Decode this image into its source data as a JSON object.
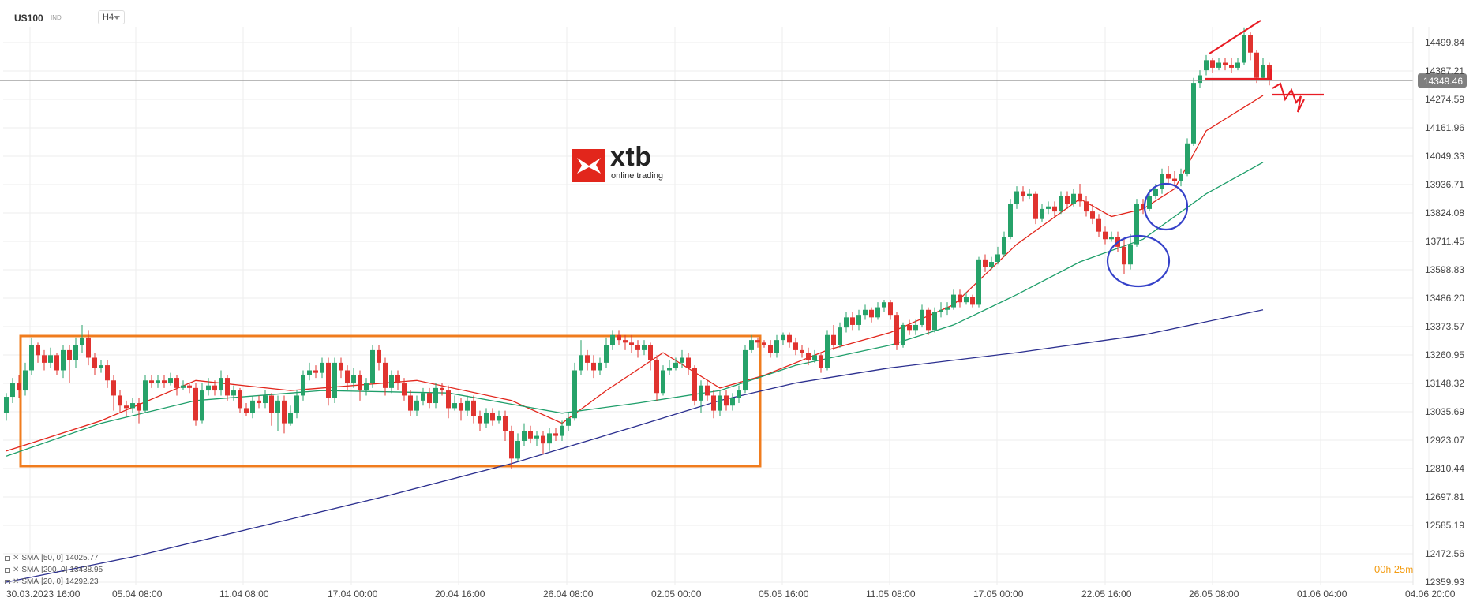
{
  "header": {
    "symbol": "US100",
    "class": "IND",
    "timeframe": "H4"
  },
  "logo": {
    "name": "xtb",
    "tagline": "online trading"
  },
  "timer": {
    "hours": "00",
    "h_unit": "h",
    "minutes": "25",
    "m_unit": "m"
  },
  "legend": [
    {
      "label": "SMA",
      "params": "[50, 0]",
      "value": "14025.77",
      "color": "#1e9e6a"
    },
    {
      "label": "SMA",
      "params": "[200, 0]",
      "value": "13438.95",
      "color": "#2b2f8f"
    },
    {
      "label": "SMA",
      "params": "[20, 0]",
      "value": "14292.23",
      "color": "#e2261c"
    }
  ],
  "colors": {
    "up": "#26a269",
    "down": "#e0332f",
    "grid": "#eeeeee",
    "box": "#f07c1e",
    "circle": "#3541c9",
    "drawing": "#e81c24",
    "price_line": "#8f8f8f"
  },
  "chart_data": {
    "type": "candlestick",
    "timeframe": "H4",
    "x_ticks": [
      "30.03.2023  16:00",
      "05.04  08:00",
      "11.04  08:00",
      "17.04  00:00",
      "20.04  16:00",
      "26.04  08:00",
      "02.05  00:00",
      "05.05  16:00",
      "11.05  08:00",
      "17.05  00:00",
      "22.05  16:00",
      "26.05  08:00",
      "01.06  04:00",
      "04.06  20:00"
    ],
    "y_ticks": [
      "14499.84",
      "14387.21",
      "14274.59",
      "14161.96",
      "14049.33",
      "13936.71",
      "13824.08",
      "13711.45",
      "13598.83",
      "13486.20",
      "13373.57",
      "13260.95",
      "13148.32",
      "13035.69",
      "12923.07",
      "12810.44",
      "12697.81",
      "12585.19",
      "12472.56",
      "12359.93"
    ],
    "ylim": [
      12359.93,
      14599
    ],
    "current_price": "14349.46",
    "candles": [
      [
        13030,
        13095,
        13000,
        13110
      ],
      [
        13095,
        13150,
        13070,
        13170
      ],
      [
        13150,
        13120,
        13090,
        13180
      ],
      [
        13120,
        13200,
        13100,
        13230
      ],
      [
        13200,
        13300,
        13180,
        13330
      ],
      [
        13300,
        13260,
        13230,
        13310
      ],
      [
        13260,
        13230,
        13200,
        13280
      ],
      [
        13230,
        13260,
        13210,
        13290
      ],
      [
        13260,
        13200,
        13180,
        13270
      ],
      [
        13200,
        13280,
        13170,
        13300
      ],
      [
        13280,
        13240,
        13150,
        13300
      ],
      [
        13240,
        13300,
        13210,
        13330
      ],
      [
        13300,
        13330,
        13270,
        13380
      ],
      [
        13330,
        13250,
        13220,
        13360
      ],
      [
        13250,
        13210,
        13180,
        13270
      ],
      [
        13210,
        13220,
        13190,
        13240
      ],
      [
        13220,
        13160,
        13130,
        13240
      ],
      [
        13160,
        13100,
        13040,
        13180
      ],
      [
        13100,
        13060,
        13030,
        13120
      ],
      [
        13060,
        13050,
        13020,
        13080
      ],
      [
        13050,
        13070,
        13030,
        13090
      ],
      [
        13070,
        13040,
        12990,
        13090
      ],
      [
        13040,
        13160,
        13030,
        13180
      ],
      [
        13160,
        13150,
        13130,
        13180
      ],
      [
        13150,
        13160,
        13130,
        13180
      ],
      [
        13160,
        13150,
        13130,
        13180
      ],
      [
        13150,
        13170,
        13140,
        13190
      ],
      [
        13170,
        13130,
        13100,
        13180
      ],
      [
        13130,
        13140,
        13120,
        13160
      ],
      [
        13140,
        13130,
        13110,
        13150
      ],
      [
        13130,
        13000,
        12980,
        13150
      ],
      [
        13000,
        13120,
        12990,
        13150
      ],
      [
        13120,
        13140,
        13100,
        13170
      ],
      [
        13140,
        13120,
        13100,
        13160
      ],
      [
        13120,
        13170,
        13100,
        13200
      ],
      [
        13170,
        13100,
        13080,
        13180
      ],
      [
        13100,
        13120,
        13080,
        13140
      ],
      [
        13120,
        13050,
        13030,
        13130
      ],
      [
        13050,
        13030,
        13020,
        13070
      ],
      [
        13030,
        13080,
        13010,
        13100
      ],
      [
        13080,
        13070,
        13050,
        13100
      ],
      [
        13070,
        13100,
        13050,
        13120
      ],
      [
        13100,
        13030,
        12980,
        13110
      ],
      [
        13030,
        13080,
        12960,
        13100
      ],
      [
        13080,
        12990,
        12950,
        13100
      ],
      [
        12990,
        13030,
        12980,
        13060
      ],
      [
        13030,
        13100,
        13010,
        13120
      ],
      [
        13100,
        13180,
        13080,
        13200
      ],
      [
        13180,
        13200,
        13160,
        13230
      ],
      [
        13200,
        13190,
        13170,
        13220
      ],
      [
        13190,
        13230,
        13170,
        13250
      ],
      [
        13230,
        13090,
        13060,
        13250
      ],
      [
        13090,
        13230,
        13070,
        13250
      ],
      [
        13230,
        13200,
        13170,
        13250
      ],
      [
        13200,
        13150,
        13120,
        13220
      ],
      [
        13150,
        13180,
        13130,
        13210
      ],
      [
        13180,
        13120,
        13080,
        13200
      ],
      [
        13120,
        13150,
        13100,
        13170
      ],
      [
        13150,
        13280,
        13130,
        13300
      ],
      [
        13280,
        13230,
        13200,
        13300
      ],
      [
        13230,
        13130,
        13100,
        13250
      ],
      [
        13130,
        13180,
        13110,
        13200
      ],
      [
        13180,
        13150,
        13120,
        13200
      ],
      [
        13150,
        13100,
        13080,
        13170
      ],
      [
        13100,
        13040,
        13020,
        13120
      ],
      [
        13040,
        13080,
        13020,
        13100
      ],
      [
        13080,
        13110,
        13060,
        13130
      ],
      [
        13110,
        13070,
        13050,
        13130
      ],
      [
        13070,
        13130,
        13050,
        13150
      ],
      [
        13130,
        13120,
        13100,
        13150
      ],
      [
        13120,
        13050,
        13010,
        13140
      ],
      [
        13050,
        13070,
        13040,
        13100
      ],
      [
        13070,
        13040,
        13000,
        13090
      ],
      [
        13040,
        13080,
        13020,
        13100
      ],
      [
        13080,
        13020,
        12990,
        13100
      ],
      [
        13020,
        12990,
        12960,
        13040
      ],
      [
        12990,
        13030,
        12970,
        13050
      ],
      [
        13030,
        13000,
        12980,
        13050
      ],
      [
        13000,
        13020,
        12990,
        13040
      ],
      [
        13020,
        12960,
        12920,
        13040
      ],
      [
        12960,
        12850,
        12810,
        12980
      ],
      [
        12850,
        12920,
        12840,
        12950
      ],
      [
        12920,
        12960,
        12900,
        12990
      ],
      [
        12960,
        12930,
        12910,
        12980
      ],
      [
        12930,
        12940,
        12900,
        12960
      ],
      [
        12940,
        12910,
        12870,
        12960
      ],
      [
        12910,
        12950,
        12880,
        12970
      ],
      [
        12950,
        12940,
        12920,
        12970
      ],
      [
        12940,
        12980,
        12920,
        13000
      ],
      [
        12980,
        13010,
        12960,
        13030
      ],
      [
        13010,
        13200,
        13000,
        13230
      ],
      [
        13200,
        13260,
        13180,
        13320
      ],
      [
        13260,
        13230,
        13200,
        13280
      ],
      [
        13230,
        13200,
        13170,
        13260
      ],
      [
        13200,
        13230,
        13180,
        13250
      ],
      [
        13230,
        13300,
        13210,
        13330
      ],
      [
        13300,
        13340,
        13280,
        13360
      ],
      [
        13340,
        13320,
        13300,
        13360
      ],
      [
        13320,
        13310,
        13280,
        13340
      ],
      [
        13310,
        13300,
        13270,
        13340
      ],
      [
        13300,
        13280,
        13250,
        13320
      ],
      [
        13280,
        13300,
        13260,
        13320
      ],
      [
        13300,
        13240,
        13200,
        13310
      ],
      [
        13240,
        13110,
        13080,
        13260
      ],
      [
        13110,
        13200,
        13100,
        13220
      ],
      [
        13200,
        13210,
        13180,
        13240
      ],
      [
        13210,
        13230,
        13200,
        13250
      ],
      [
        13230,
        13250,
        13210,
        13280
      ],
      [
        13250,
        13210,
        13180,
        13270
      ],
      [
        13210,
        13080,
        13060,
        13220
      ],
      [
        13080,
        13140,
        13030,
        13160
      ],
      [
        13140,
        13100,
        13080,
        13160
      ],
      [
        13100,
        13040,
        13010,
        13120
      ],
      [
        13040,
        13100,
        13020,
        13120
      ],
      [
        13100,
        13060,
        13040,
        13120
      ],
      [
        13060,
        13090,
        13040,
        13110
      ],
      [
        13090,
        13120,
        13070,
        13140
      ],
      [
        13120,
        13280,
        13110,
        13300
      ],
      [
        13280,
        13320,
        13270,
        13340
      ],
      [
        13320,
        13310,
        13290,
        13330
      ],
      [
        13310,
        13300,
        13290,
        13320
      ],
      [
        13300,
        13270,
        13250,
        13320
      ],
      [
        13270,
        13320,
        13250,
        13340
      ],
      [
        13320,
        13340,
        13300,
        13350
      ],
      [
        13340,
        13310,
        13290,
        13350
      ],
      [
        13310,
        13280,
        13260,
        13330
      ],
      [
        13280,
        13270,
        13250,
        13300
      ],
      [
        13270,
        13240,
        13220,
        13290
      ],
      [
        13240,
        13260,
        13230,
        13280
      ],
      [
        13260,
        13210,
        13190,
        13270
      ],
      [
        13210,
        13340,
        13200,
        13360
      ],
      [
        13340,
        13300,
        13280,
        13380
      ],
      [
        13300,
        13370,
        13290,
        13390
      ],
      [
        13370,
        13410,
        13350,
        13430
      ],
      [
        13410,
        13380,
        13360,
        13430
      ],
      [
        13380,
        13420,
        13360,
        13440
      ],
      [
        13420,
        13440,
        13400,
        13460
      ],
      [
        13440,
        13410,
        13390,
        13450
      ],
      [
        13410,
        13450,
        13400,
        13470
      ],
      [
        13450,
        13470,
        13430,
        13480
      ],
      [
        13470,
        13420,
        13400,
        13480
      ],
      [
        13420,
        13300,
        13280,
        13430
      ],
      [
        13300,
        13380,
        13290,
        13390
      ],
      [
        13380,
        13360,
        13340,
        13400
      ],
      [
        13360,
        13380,
        13340,
        13400
      ],
      [
        13380,
        13440,
        13370,
        13460
      ],
      [
        13440,
        13360,
        13340,
        13450
      ],
      [
        13360,
        13430,
        13350,
        13450
      ],
      [
        13430,
        13440,
        13410,
        13470
      ],
      [
        13440,
        13450,
        13420,
        13470
      ],
      [
        13450,
        13500,
        13440,
        13520
      ],
      [
        13500,
        13470,
        13450,
        13520
      ],
      [
        13470,
        13490,
        13460,
        13510
      ],
      [
        13490,
        13460,
        13450,
        13500
      ],
      [
        13460,
        13640,
        13450,
        13650
      ],
      [
        13640,
        13610,
        13590,
        13660
      ],
      [
        13610,
        13630,
        13600,
        13650
      ],
      [
        13630,
        13660,
        13620,
        13690
      ],
      [
        13660,
        13730,
        13650,
        13750
      ],
      [
        13730,
        13860,
        13720,
        13880
      ],
      [
        13860,
        13910,
        13840,
        13930
      ],
      [
        13910,
        13890,
        13870,
        13930
      ],
      [
        13890,
        13900,
        13880,
        13920
      ],
      [
        13900,
        13800,
        13780,
        13910
      ],
      [
        13800,
        13840,
        13790,
        13860
      ],
      [
        13840,
        13850,
        13820,
        13870
      ],
      [
        13850,
        13830,
        13810,
        13870
      ],
      [
        13830,
        13890,
        13820,
        13910
      ],
      [
        13890,
        13860,
        13840,
        13910
      ],
      [
        13860,
        13900,
        13850,
        13920
      ],
      [
        13900,
        13870,
        13850,
        13940
      ],
      [
        13870,
        13830,
        13810,
        13890
      ],
      [
        13830,
        13800,
        13780,
        13860
      ],
      [
        13800,
        13750,
        13730,
        13820
      ],
      [
        13750,
        13720,
        13700,
        13770
      ],
      [
        13720,
        13730,
        13710,
        13750
      ],
      [
        13730,
        13690,
        13670,
        13750
      ],
      [
        13690,
        13620,
        13580,
        13720
      ],
      [
        13620,
        13700,
        13600,
        13740
      ],
      [
        13700,
        13860,
        13690,
        13880
      ],
      [
        13860,
        13840,
        13820,
        13880
      ],
      [
        13840,
        13890,
        13830,
        13920
      ],
      [
        13890,
        13920,
        13880,
        13940
      ],
      [
        13920,
        13980,
        13900,
        14000
      ],
      [
        13980,
        13960,
        13940,
        14010
      ],
      [
        13960,
        13950,
        13930,
        13990
      ],
      [
        13950,
        13980,
        13930,
        14000
      ],
      [
        13980,
        14100,
        13970,
        14120
      ],
      [
        14100,
        14340,
        14090,
        14360
      ],
      [
        14340,
        14370,
        14320,
        14390
      ],
      [
        14390,
        14430,
        14370,
        14450
      ],
      [
        14430,
        14400,
        14380,
        14440
      ],
      [
        14400,
        14420,
        14390,
        14440
      ],
      [
        14420,
        14410,
        14390,
        14440
      ],
      [
        14410,
        14400,
        14380,
        14440
      ],
      [
        14400,
        14420,
        14390,
        14440
      ],
      [
        14420,
        14530,
        14410,
        14560
      ],
      [
        14530,
        14460,
        14430,
        14540
      ],
      [
        14460,
        14360,
        14340,
        14470
      ],
      [
        14360,
        14410,
        14350,
        14440
      ],
      [
        14410,
        14349.46,
        14330,
        14420
      ]
    ],
    "sma": {
      "SMA [20, 0]": [
        [
          0,
          12880
        ],
        [
          15,
          13000
        ],
        [
          30,
          13160
        ],
        [
          45,
          13120
        ],
        [
          55,
          13140
        ],
        [
          65,
          13160
        ],
        [
          80,
          13080
        ],
        [
          88,
          12990
        ],
        [
          95,
          13120
        ],
        [
          104,
          13270
        ],
        [
          113,
          13130
        ],
        [
          120,
          13180
        ],
        [
          130,
          13280
        ],
        [
          140,
          13350
        ],
        [
          150,
          13460
        ],
        [
          160,
          13700
        ],
        [
          170,
          13880
        ],
        [
          175,
          13810
        ],
        [
          180,
          13840
        ],
        [
          185,
          13920
        ],
        [
          190,
          14150
        ],
        [
          199,
          14290
        ]
      ],
      "SMA [50, 0]": [
        [
          0,
          12860
        ],
        [
          15,
          12990
        ],
        [
          30,
          13080
        ],
        [
          50,
          13120
        ],
        [
          70,
          13110
        ],
        [
          88,
          13030
        ],
        [
          100,
          13070
        ],
        [
          113,
          13120
        ],
        [
          125,
          13220
        ],
        [
          140,
          13300
        ],
        [
          150,
          13380
        ],
        [
          160,
          13500
        ],
        [
          170,
          13630
        ],
        [
          180,
          13720
        ],
        [
          190,
          13900
        ],
        [
          199,
          14025
        ]
      ],
      "SMA [200, 0]": [
        [
          0,
          12360
        ],
        [
          20,
          12460
        ],
        [
          40,
          12580
        ],
        [
          60,
          12700
        ],
        [
          80,
          12830
        ],
        [
          100,
          12980
        ],
        [
          113,
          13080
        ],
        [
          125,
          13150
        ],
        [
          140,
          13210
        ],
        [
          160,
          13270
        ],
        [
          180,
          13340
        ],
        [
          199,
          13440
        ]
      ]
    }
  }
}
